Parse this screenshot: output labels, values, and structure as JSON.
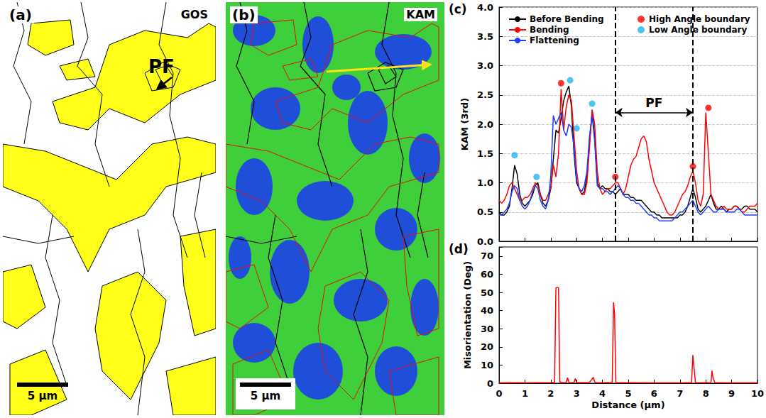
{
  "images": [
    {
      "panel": "(a)",
      "label": "GOS",
      "annotation": "PF",
      "scale_bar": "5 μm"
    },
    {
      "panel": "(b)",
      "label": "KAM",
      "scale_bar": "5 μm"
    }
  ],
  "chart_data": [
    {
      "panel": "(c)",
      "type": "line",
      "y_label": "KAM (3rd)",
      "x": [
        0,
        0.1,
        0.2,
        0.3,
        0.4,
        0.5,
        0.6,
        0.7,
        0.8,
        0.9,
        1,
        1.1,
        1.2,
        1.3,
        1.4,
        1.5,
        1.6,
        1.7,
        1.8,
        1.9,
        2,
        2.1,
        2.2,
        2.3,
        2.4,
        2.5,
        2.6,
        2.7,
        2.8,
        2.9,
        3,
        3.1,
        3.2,
        3.3,
        3.4,
        3.5,
        3.6,
        3.7,
        3.8,
        3.9,
        4,
        4.1,
        4.2,
        4.3,
        4.4,
        4.5,
        4.6,
        4.7,
        4.8,
        4.9,
        5,
        5.1,
        5.2,
        5.3,
        5.4,
        5.5,
        5.6,
        5.7,
        5.8,
        5.9,
        6,
        6.1,
        6.2,
        6.3,
        6.4,
        6.5,
        6.6,
        6.7,
        6.8,
        6.9,
        7,
        7.1,
        7.2,
        7.3,
        7.4,
        7.5,
        7.6,
        7.7,
        7.8,
        7.9,
        8,
        8.1,
        8.2,
        8.3,
        8.4,
        8.5,
        8.6,
        8.7,
        8.8,
        8.9,
        9,
        9.1,
        9.2,
        9.3,
        9.4,
        9.5,
        9.6,
        9.7,
        9.8,
        9.9,
        10
      ],
      "series": [
        {
          "name": "Before Bending",
          "color": "#000000",
          "line_style": "solid",
          "values": [
            0.5,
            0.45,
            0.45,
            0.5,
            0.6,
            0.9,
            1.3,
            1.15,
            0.8,
            0.65,
            0.6,
            0.65,
            0.7,
            0.8,
            0.95,
            1.0,
            0.8,
            0.65,
            0.6,
            0.7,
            0.9,
            1.4,
            1.9,
            1.85,
            2.1,
            2.4,
            2.55,
            2.65,
            2.3,
            1.5,
            1.0,
            0.9,
            0.8,
            0.85,
            1.1,
            1.7,
            2.2,
            1.8,
            1.0,
            0.9,
            0.95,
            0.9,
            0.9,
            0.85,
            0.85,
            0.8,
            0.85,
            0.9,
            0.8,
            0.8,
            0.8,
            0.75,
            0.75,
            0.7,
            0.7,
            0.7,
            0.65,
            0.6,
            0.55,
            0.5,
            0.5,
            0.45,
            0.45,
            0.4,
            0.4,
            0.4,
            0.4,
            0.4,
            0.4,
            0.4,
            0.45,
            0.45,
            0.5,
            0.6,
            0.75,
            0.9,
            0.75,
            0.55,
            0.5,
            0.55,
            0.6,
            0.7,
            0.8,
            0.65,
            0.55,
            0.55,
            0.6,
            0.55,
            0.5,
            0.55,
            0.55,
            0.6,
            0.6,
            0.55,
            0.55,
            0.6,
            0.6,
            0.55,
            0.55,
            0.55,
            0.5
          ]
        },
        {
          "name": "Bending",
          "color": "#ff0000",
          "line_style": "solid",
          "values": [
            0.7,
            0.65,
            0.7,
            0.8,
            0.95,
            1.0,
            0.9,
            0.8,
            0.7,
            0.7,
            0.75,
            0.75,
            0.8,
            0.9,
            1.0,
            0.95,
            0.8,
            0.7,
            0.7,
            0.8,
            0.9,
            1.3,
            1.1,
            1.5,
            2.6,
            1.9,
            2.3,
            2.5,
            2.4,
            1.8,
            1.2,
            0.9,
            0.8,
            0.8,
            1.0,
            1.6,
            2.25,
            2.0,
            1.2,
            0.9,
            0.8,
            0.85,
            0.9,
            0.9,
            0.95,
            1.0,
            1.0,
            0.9,
            0.8,
            0.9,
            1.1,
            1.3,
            1.4,
            1.45,
            1.6,
            1.75,
            1.8,
            1.7,
            1.4,
            1.2,
            1.0,
            0.9,
            0.8,
            0.7,
            0.6,
            0.5,
            0.45,
            0.45,
            0.5,
            0.6,
            0.7,
            0.8,
            0.85,
            0.95,
            1.1,
            1.2,
            1.0,
            0.7,
            0.6,
            0.8,
            2.2,
            1.5,
            0.8,
            0.7,
            0.6,
            0.55,
            0.55,
            0.6,
            0.55,
            0.55,
            0.55,
            0.6,
            0.6,
            0.55,
            0.5,
            0.5,
            0.55,
            0.6,
            0.6,
            0.6,
            0.65
          ]
        },
        {
          "name": "Flattening",
          "color": "#1c3cff",
          "line_style": "solid",
          "values": [
            0.45,
            0.45,
            0.5,
            0.55,
            0.65,
            0.85,
            0.95,
            0.9,
            0.7,
            0.6,
            0.55,
            0.6,
            0.7,
            0.85,
            0.95,
            0.9,
            0.7,
            0.6,
            0.55,
            0.7,
            1.1,
            2.15,
            2.0,
            2.1,
            2.2,
            1.9,
            1.8,
            2.0,
            1.95,
            1.6,
            1.05,
            0.9,
            0.85,
            0.95,
            1.2,
            1.8,
            2.15,
            1.7,
            0.95,
            0.9,
            0.9,
            0.85,
            0.85,
            0.8,
            0.85,
            0.9,
            0.95,
            0.9,
            0.8,
            0.75,
            0.75,
            0.7,
            0.7,
            0.65,
            0.65,
            0.6,
            0.55,
            0.5,
            0.45,
            0.45,
            0.4,
            0.4,
            0.35,
            0.35,
            0.35,
            0.35,
            0.35,
            0.35,
            0.4,
            0.45,
            0.5,
            0.5,
            0.55,
            0.6,
            0.65,
            0.7,
            0.6,
            0.5,
            0.45,
            0.5,
            0.55,
            0.6,
            0.55,
            0.5,
            0.5,
            0.55,
            0.55,
            0.55,
            0.5,
            0.5,
            0.5,
            0.5,
            0.55,
            0.55,
            0.5,
            0.45,
            0.45,
            0.45,
            0.45,
            0.45,
            0.45
          ]
        },
        {
          "name": "High Angle boundary",
          "type": "scatter",
          "marker": "circle",
          "color": "#ff0000",
          "x": [
            2.4,
            4.5,
            7.5,
            8.1
          ],
          "values": [
            2.7,
            1.1,
            1.28,
            2.28
          ]
        },
        {
          "name": "Low Angle boundary",
          "type": "scatter",
          "marker": "circle",
          "color": "#1eb4f0",
          "x": [
            0.6,
            1.45,
            2.75,
            3.0,
            3.6
          ],
          "values": [
            1.47,
            1.1,
            2.75,
            1.93,
            2.35
          ]
        }
      ],
      "xlim": [
        0,
        10
      ],
      "xticks": [
        0,
        1,
        2,
        3,
        4,
        5,
        6,
        7,
        8,
        9,
        10
      ],
      "ylim": [
        0,
        4
      ],
      "yticks": [
        {
          "value": 0,
          "label": "0.0"
        },
        0.5,
        {
          "value": 1,
          "label": "1.0"
        },
        1.5,
        {
          "value": 2,
          "label": "2.0"
        },
        2.5,
        {
          "value": 3,
          "label": "3.0"
        },
        3.5,
        {
          "value": 4,
          "label": "4.0"
        }
      ],
      "grid": true,
      "legend": "top",
      "tick_labels": "y",
      "annotations": [
        {
          "text": "PF",
          "x_start": 4.5,
          "x_end": 7.5,
          "y": 2.2,
          "line_style": "dashed"
        }
      ]
    },
    {
      "panel": "(d)",
      "type": "line",
      "x_label": "Distance (μm)",
      "y_label": "Misorientation (Deg)",
      "x": [
        0,
        0.5,
        1.0,
        1.5,
        2.0,
        2.15,
        2.2,
        2.25,
        2.3,
        2.35,
        2.4,
        2.6,
        2.65,
        2.7,
        2.9,
        2.95,
        3.0,
        3.5,
        3.65,
        3.7,
        3.75,
        4.0,
        4.38,
        4.43,
        4.47,
        4.52,
        4.6,
        5.0,
        6.0,
        7.0,
        7.45,
        7.5,
        7.55,
        7.6,
        7.7,
        8.0,
        8.2,
        8.24,
        8.28,
        8.35,
        9.0,
        10.0
      ],
      "series": [
        {
          "color": "#ff0000",
          "line_style": "solid",
          "values": [
            0.2,
            0.3,
            0.2,
            0.3,
            0.3,
            0.5,
            52.5,
            52.8,
            52.5,
            0.8,
            0.5,
            0.4,
            3.0,
            0.5,
            0.4,
            2.5,
            0.4,
            0.5,
            3.2,
            0.8,
            0.3,
            0.3,
            0.5,
            44.5,
            38,
            0.5,
            0.3,
            0.3,
            0.2,
            0.2,
            0.4,
            15.5,
            8,
            0.4,
            0.3,
            0.3,
            0.4,
            6.9,
            3,
            0.4,
            0.2,
            0.2
          ]
        }
      ],
      "xlim": [
        0,
        10
      ],
      "xticks": [
        0,
        1,
        2,
        3,
        4,
        5,
        6,
        7,
        8,
        9,
        10
      ],
      "ylim": [
        0,
        75
      ],
      "yticks": [
        0,
        10,
        20,
        30,
        40,
        50,
        60,
        70
      ],
      "grid": false
    }
  ]
}
